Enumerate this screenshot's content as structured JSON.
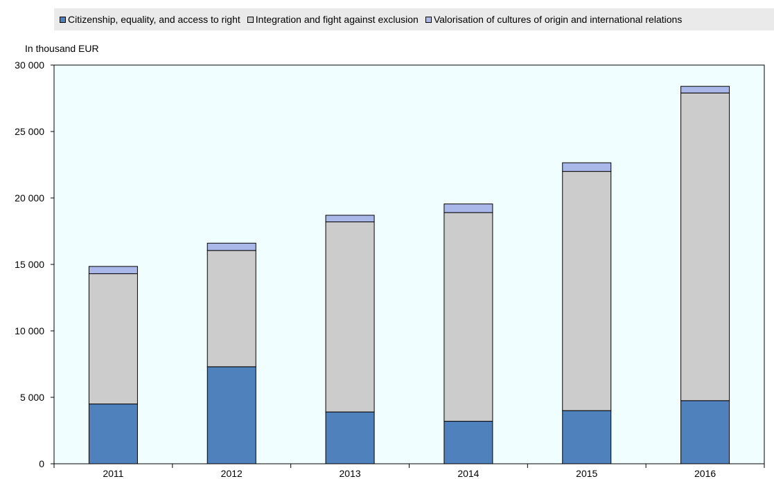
{
  "chart_data": {
    "type": "bar",
    "stacked": true,
    "title": "",
    "xlabel": "",
    "ylabel": "In thousand EUR",
    "ylim": [
      0,
      30000
    ],
    "yticks": [
      "0",
      "5 000",
      "10 000",
      "15 000",
      "20 000",
      "25 000",
      "30 000"
    ],
    "ytick_values": [
      0,
      5000,
      10000,
      15000,
      20000,
      25000,
      30000
    ],
    "categories": [
      "2011",
      "2012",
      "2013",
      "2014",
      "2015",
      "2016"
    ],
    "legend_position": "top",
    "grid": false,
    "plot_background": "#f0feff",
    "series": [
      {
        "name": "Citizenship, equality, and access to right",
        "color": "#4f81bd",
        "values": [
          4500,
          7300,
          3900,
          3200,
          4000,
          4750
        ]
      },
      {
        "name": "Integration and fight against exclusion",
        "color": "#cccccc",
        "values": [
          9800,
          8750,
          14300,
          15700,
          18000,
          23150
        ]
      },
      {
        "name": "Valorisation of cultures of origin and international relations",
        "color": "#a9b8e8",
        "values": [
          550,
          550,
          500,
          650,
          650,
          500
        ]
      }
    ]
  }
}
